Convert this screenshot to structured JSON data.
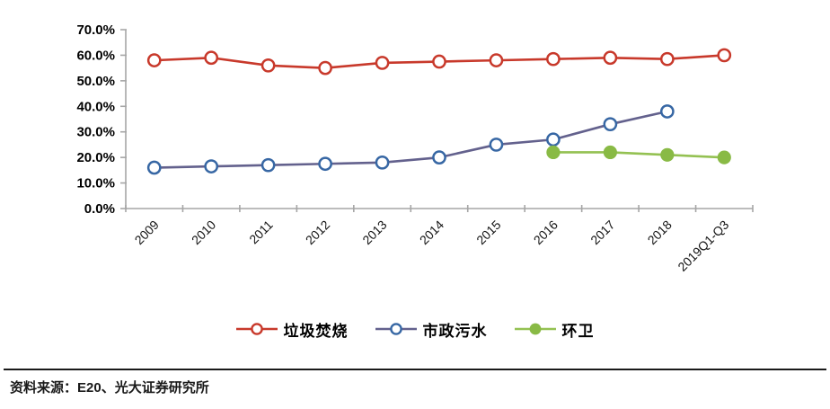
{
  "chart_data": {
    "type": "line",
    "title": "",
    "categories": [
      "2009",
      "2010",
      "2011",
      "2012",
      "2013",
      "2014",
      "2015",
      "2016",
      "2017",
      "2018",
      "2019Q1-Q3"
    ],
    "series": [
      {
        "name": "垃圾焚烧",
        "line_color": "#C8392B",
        "marker_color": "#C8392B",
        "marker": "open-circle",
        "values": [
          58,
          59,
          56,
          55,
          57,
          57.5,
          58,
          58.5,
          59,
          58.5,
          60
        ]
      },
      {
        "name": "市政污水",
        "line_color": "#63618D",
        "marker_color": "#3767A4",
        "marker": "open-circle",
        "values": [
          16,
          16.5,
          17,
          17.5,
          18,
          20,
          25,
          27,
          33,
          38,
          null
        ]
      },
      {
        "name": "环卫",
        "line_color": "#94C152",
        "marker_color": "#89BA45",
        "marker": "filled-circle",
        "values": [
          null,
          null,
          null,
          null,
          null,
          null,
          null,
          22,
          22,
          21,
          20
        ]
      }
    ],
    "y_axis": {
      "min": 0,
      "max": 70,
      "step": 10,
      "tick_labels": [
        "0.0%",
        "10.0%",
        "20.0%",
        "30.0%",
        "40.0%",
        "50.0%",
        "60.0%",
        "70.0%"
      ]
    },
    "x_axis": {
      "label_rotation_deg": -45
    },
    "grid": false,
    "legend_position": "bottom",
    "axis_color": "#A6A6A6"
  },
  "footer": {
    "source": "资料来源：E20、光大证券研究所"
  }
}
